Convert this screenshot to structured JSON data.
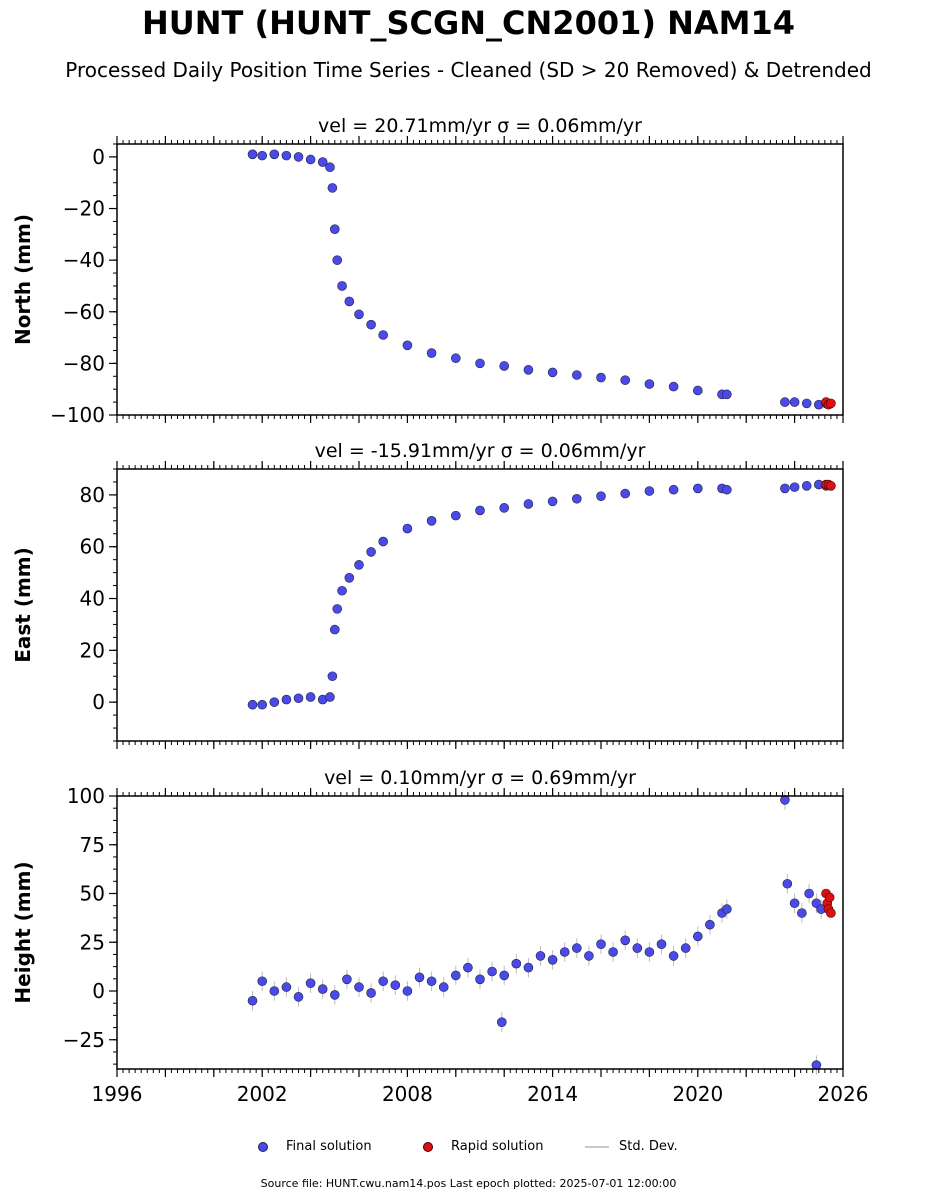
{
  "figure": {
    "title": "HUNT (HUNT_SCGN_CN2001) NAM14",
    "subtitle": "Processed Daily Position Time Series - Cleaned (SD > 20 Removed) & Detrended",
    "footer": "Source file: HUNT.cwu.nam14.pos  Last epoch plotted: 2025-07-01 12:00:00",
    "legend": {
      "final": "Final solution",
      "rapid": "Rapid solution",
      "std": "Std. Dev."
    },
    "colors": {
      "final": "#4a4ae8",
      "rapid": "#dd1111",
      "std": "#bbbbbb",
      "edge": "#222244"
    }
  },
  "chart_data": [
    {
      "type": "scatter",
      "title": "vel = 20.71mm/yr   σ = 0.06mm/yr",
      "ylabel": "North (mm)",
      "xlim": [
        1996,
        2026
      ],
      "ylim": [
        -100,
        5
      ],
      "yticks": [
        0,
        -20,
        -40,
        -60,
        -80,
        -100
      ],
      "xticks": [],
      "series": [
        {
          "name": "Final solution",
          "kind": "final",
          "x": [
            2001.6,
            2002.0,
            2002.5,
            2003.0,
            2003.5,
            2004.0,
            2004.5,
            2004.8,
            2004.9,
            2005.0,
            2005.1,
            2005.3,
            2005.6,
            2006.0,
            2006.5,
            2007.0,
            2008.0,
            2009.0,
            2010.0,
            2011.0,
            2012.0,
            2013.0,
            2014.0,
            2015.0,
            2016.0,
            2017.0,
            2018.0,
            2019.0,
            2020.0,
            2021.0,
            2021.2,
            2023.6,
            2024.0,
            2024.5,
            2025.0,
            2025.3
          ],
          "y": [
            1,
            0.5,
            1,
            0.5,
            0,
            -1,
            -2,
            -4,
            -12,
            -28,
            -40,
            -50,
            -56,
            -61,
            -65,
            -69,
            -73,
            -76,
            -78,
            -80,
            -81,
            -82.5,
            -83.5,
            -84.5,
            -85.5,
            -86.5,
            -88,
            -89,
            -90.5,
            -92,
            -92,
            -95,
            -95,
            -95.5,
            -96,
            -95.5
          ]
        },
        {
          "name": "Rapid solution",
          "kind": "rapid",
          "x": [
            2025.3,
            2025.4,
            2025.5
          ],
          "y": [
            -95,
            -96,
            -95.5
          ]
        }
      ]
    },
    {
      "type": "scatter",
      "title": "vel = -15.91mm/yr   σ = 0.06mm/yr",
      "ylabel": "East (mm)",
      "xlim": [
        1996,
        2026
      ],
      "ylim": [
        -15,
        90
      ],
      "yticks": [
        80,
        60,
        40,
        20,
        0
      ],
      "xticks": [],
      "series": [
        {
          "name": "Final solution",
          "kind": "final",
          "x": [
            2001.6,
            2002.0,
            2002.5,
            2003.0,
            2003.5,
            2004.0,
            2004.5,
            2004.8,
            2004.9,
            2005.0,
            2005.1,
            2005.3,
            2005.6,
            2006.0,
            2006.5,
            2007.0,
            2008.0,
            2009.0,
            2010.0,
            2011.0,
            2012.0,
            2013.0,
            2014.0,
            2015.0,
            2016.0,
            2017.0,
            2018.0,
            2019.0,
            2020.0,
            2021.0,
            2021.2,
            2023.6,
            2024.0,
            2024.5,
            2025.0,
            2025.3
          ],
          "y": [
            -1,
            -1,
            0,
            1,
            1.5,
            2,
            1,
            2,
            10,
            28,
            36,
            43,
            48,
            53,
            58,
            62,
            67,
            70,
            72,
            74,
            75,
            76.5,
            77.5,
            78.5,
            79.5,
            80.5,
            81.5,
            82,
            82.5,
            82.5,
            82,
            82.5,
            83,
            83.5,
            84,
            83.5
          ]
        },
        {
          "name": "Rapid solution",
          "kind": "rapid",
          "x": [
            2025.3,
            2025.4,
            2025.5
          ],
          "y": [
            84,
            84,
            83.5
          ]
        }
      ]
    },
    {
      "type": "scatter",
      "title": "vel = 0.10mm/yr   σ = 0.69mm/yr",
      "ylabel": "Height (mm)",
      "xlim": [
        1996,
        2026
      ],
      "ylim": [
        -40,
        100
      ],
      "yticks": [
        100,
        75,
        50,
        25,
        0,
        -25
      ],
      "xticks": [
        1996,
        2002,
        2008,
        2014,
        2020,
        2026
      ],
      "series": [
        {
          "name": "Final solution",
          "kind": "final",
          "x": [
            2001.6,
            2002.0,
            2002.5,
            2003.0,
            2003.5,
            2004.0,
            2004.5,
            2005.0,
            2005.5,
            2006.0,
            2006.5,
            2007.0,
            2007.5,
            2008.0,
            2008.5,
            2009.0,
            2009.5,
            2010.0,
            2010.5,
            2011.0,
            2011.5,
            2012.0,
            2012.5,
            2013.0,
            2013.5,
            2014.0,
            2014.5,
            2015.0,
            2015.5,
            2016.0,
            2016.5,
            2017.0,
            2017.5,
            2018.0,
            2018.5,
            2019.0,
            2019.5,
            2020.0,
            2020.5,
            2021.0,
            2021.2,
            2023.6,
            2023.7,
            2024.0,
            2024.3,
            2024.6,
            2024.9,
            2025.1,
            2011.9,
            2024.9
          ],
          "y": [
            -5,
            5,
            0,
            2,
            -3,
            4,
            1,
            -2,
            6,
            2,
            -1,
            5,
            3,
            0,
            7,
            5,
            2,
            8,
            12,
            6,
            10,
            8,
            14,
            12,
            18,
            16,
            20,
            22,
            18,
            24,
            20,
            26,
            22,
            20,
            24,
            18,
            22,
            28,
            34,
            40,
            42,
            98,
            55,
            45,
            40,
            50,
            45,
            42,
            -16,
            -38
          ]
        },
        {
          "name": "Rapid solution",
          "kind": "rapid",
          "x": [
            2025.3,
            2025.35,
            2025.4,
            2025.45,
            2025.5
          ],
          "y": [
            50,
            45,
            42,
            48,
            40
          ]
        }
      ]
    }
  ]
}
